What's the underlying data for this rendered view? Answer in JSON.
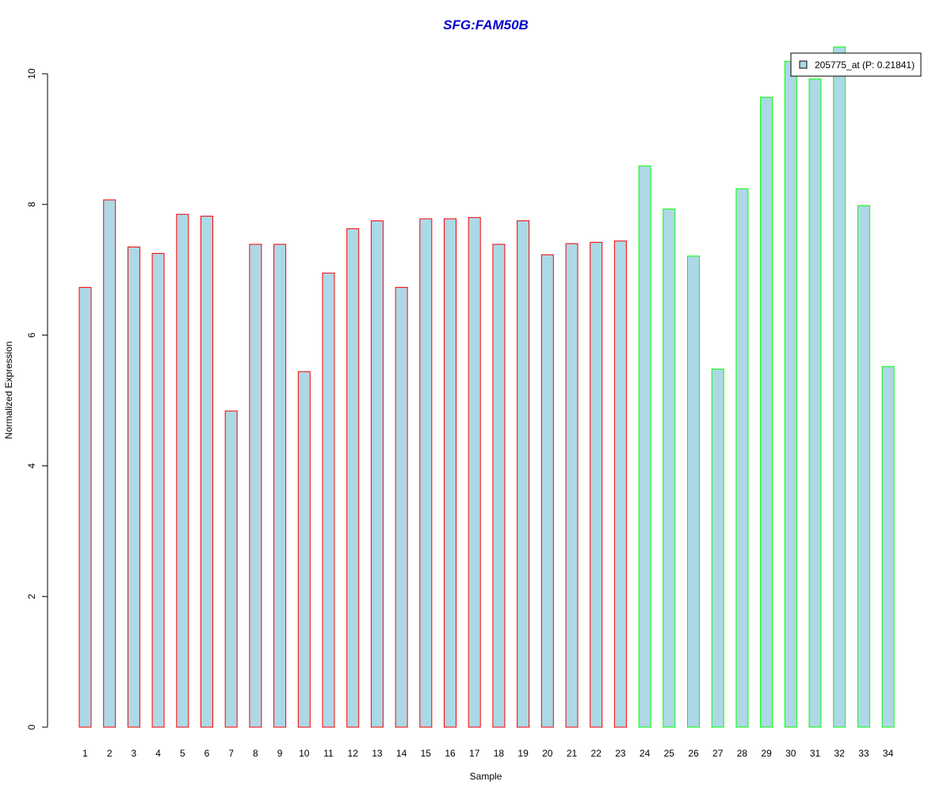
{
  "chart_data": {
    "type": "bar",
    "title": "SFG:FAM50B",
    "xlabel": "Sample",
    "ylabel": "Normalized Expression",
    "categories": [
      "1",
      "2",
      "3",
      "4",
      "5",
      "6",
      "7",
      "8",
      "9",
      "10",
      "11",
      "12",
      "13",
      "14",
      "15",
      "16",
      "17",
      "18",
      "19",
      "20",
      "21",
      "22",
      "23",
      "24",
      "25",
      "26",
      "27",
      "28",
      "29",
      "30",
      "31",
      "32",
      "33",
      "34"
    ],
    "series": [
      {
        "name": "205775_at (P: 0.21841)",
        "values": [
          6.73,
          8.07,
          7.35,
          7.25,
          7.85,
          7.82,
          4.84,
          7.39,
          7.39,
          5.44,
          6.95,
          7.63,
          7.75,
          6.73,
          7.78,
          7.78,
          7.8,
          7.39,
          7.75,
          7.23,
          7.4,
          7.42,
          7.44,
          8.59,
          7.93,
          7.21,
          5.48,
          8.24,
          9.64,
          10.19,
          9.92,
          10.41,
          7.98,
          5.52
        ]
      }
    ],
    "groups": [
      {
        "samples": [
          1,
          23
        ],
        "border_color": "#ff0000"
      },
      {
        "samples": [
          24,
          34
        ],
        "border_color": "#00ff00"
      }
    ],
    "yticks": [
      0,
      2,
      4,
      6,
      8,
      10
    ],
    "ylim": [
      0,
      10.41
    ],
    "grid": false,
    "legend_position": "top-right",
    "colors": {
      "bar_fill": "#add8e6",
      "title": "#0000cc",
      "axis": "#000000"
    }
  }
}
